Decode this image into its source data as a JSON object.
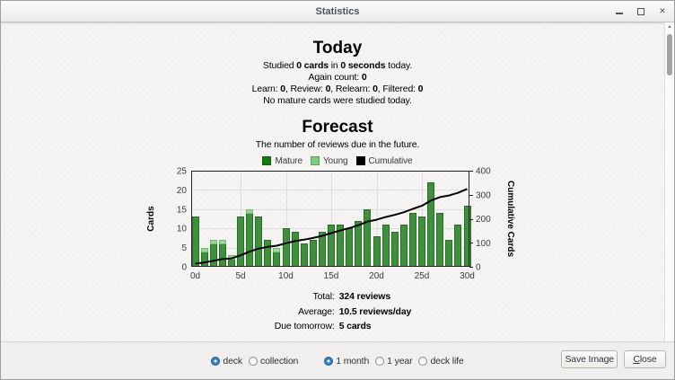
{
  "window": {
    "title": "Statistics"
  },
  "today": {
    "heading": "Today",
    "lines": [
      {
        "runs": [
          {
            "t": "Studied "
          },
          {
            "t": "0 cards",
            "b": true
          },
          {
            "t": " in "
          },
          {
            "t": "0 seconds",
            "b": true
          },
          {
            "t": " today."
          }
        ]
      },
      {
        "runs": [
          {
            "t": "Again count: "
          },
          {
            "t": "0",
            "b": true
          }
        ]
      },
      {
        "runs": [
          {
            "t": "Learn: "
          },
          {
            "t": "0",
            "b": true
          },
          {
            "t": ", Review: "
          },
          {
            "t": "0",
            "b": true
          },
          {
            "t": ", Relearn: "
          },
          {
            "t": "0",
            "b": true
          },
          {
            "t": ", Filtered: "
          },
          {
            "t": "0",
            "b": true
          }
        ]
      },
      {
        "runs": [
          {
            "t": "No mature cards were studied today."
          }
        ]
      }
    ]
  },
  "forecast": {
    "heading": "Forecast",
    "subtitle": "The number of reviews due in the future.",
    "legend": [
      {
        "label": "Mature",
        "color": "#127a12"
      },
      {
        "label": "Young",
        "color": "#7ccf7c"
      },
      {
        "label": "Cumulative",
        "color": "#000000"
      }
    ],
    "summary": [
      {
        "label": "Total:",
        "value": "324 reviews"
      },
      {
        "label": "Average:",
        "value": "10.5 reviews/day"
      },
      {
        "label": "Due tomorrow:",
        "value": "5 cards"
      }
    ]
  },
  "chart_data": {
    "type": "bar",
    "title": "Forecast",
    "xlabel": "",
    "ylabel": "Cards",
    "y2label": "Cumulative Cards",
    "ylim": [
      0,
      25
    ],
    "y2lim": [
      0,
      400
    ],
    "yticks": [
      0,
      5,
      10,
      15,
      20,
      25
    ],
    "y2ticks": [
      0,
      100,
      200,
      300,
      400
    ],
    "xticks": [
      {
        "v": 0,
        "label": "0d"
      },
      {
        "v": 5,
        "label": "5d"
      },
      {
        "v": 10,
        "label": "10d"
      },
      {
        "v": 15,
        "label": "15d"
      },
      {
        "v": 20,
        "label": "20d"
      },
      {
        "v": 25,
        "label": "25d"
      },
      {
        "v": 30,
        "label": "30d"
      }
    ],
    "series": [
      {
        "name": "Mature",
        "fill": "#3f8f3f",
        "stroke": "#267026",
        "values": [
          13,
          4,
          6,
          6,
          2,
          13,
          14,
          13,
          7,
          4,
          10,
          9,
          6,
          7,
          9,
          11,
          11,
          10,
          12,
          15,
          8,
          11,
          9,
          11,
          14,
          13,
          22,
          14,
          7,
          11,
          16
        ]
      },
      {
        "name": "Young",
        "fill": "#98d898",
        "stroke": "#74b874",
        "values": [
          0,
          1,
          1,
          1,
          1,
          0,
          1,
          0,
          0,
          1,
          0,
          0,
          0,
          0,
          0,
          0,
          0,
          0,
          0,
          0,
          0,
          0,
          0,
          0,
          0,
          0,
          0,
          0,
          0,
          0,
          0
        ]
      }
    ],
    "cumulative": {
      "name": "Cumulative",
      "color": "#000000",
      "values": [
        13,
        18,
        25,
        32,
        35,
        48,
        63,
        76,
        83,
        88,
        98,
        107,
        113,
        120,
        129,
        140,
        151,
        161,
        173,
        188,
        196,
        207,
        216,
        227,
        241,
        254,
        276,
        290,
        297,
        308,
        324
      ]
    }
  },
  "footer": {
    "radios_scope": [
      {
        "label": "deck",
        "selected": true
      },
      {
        "label": "collection",
        "selected": false
      }
    ],
    "radios_range": [
      {
        "label": "1 month",
        "selected": true
      },
      {
        "label": "1 year",
        "selected": false
      },
      {
        "label": "deck life",
        "selected": false
      }
    ],
    "buttons": {
      "save_image": "Save Image",
      "close_runs": [
        {
          "t": "C",
          "u": true
        },
        {
          "t": "lose"
        }
      ]
    }
  }
}
